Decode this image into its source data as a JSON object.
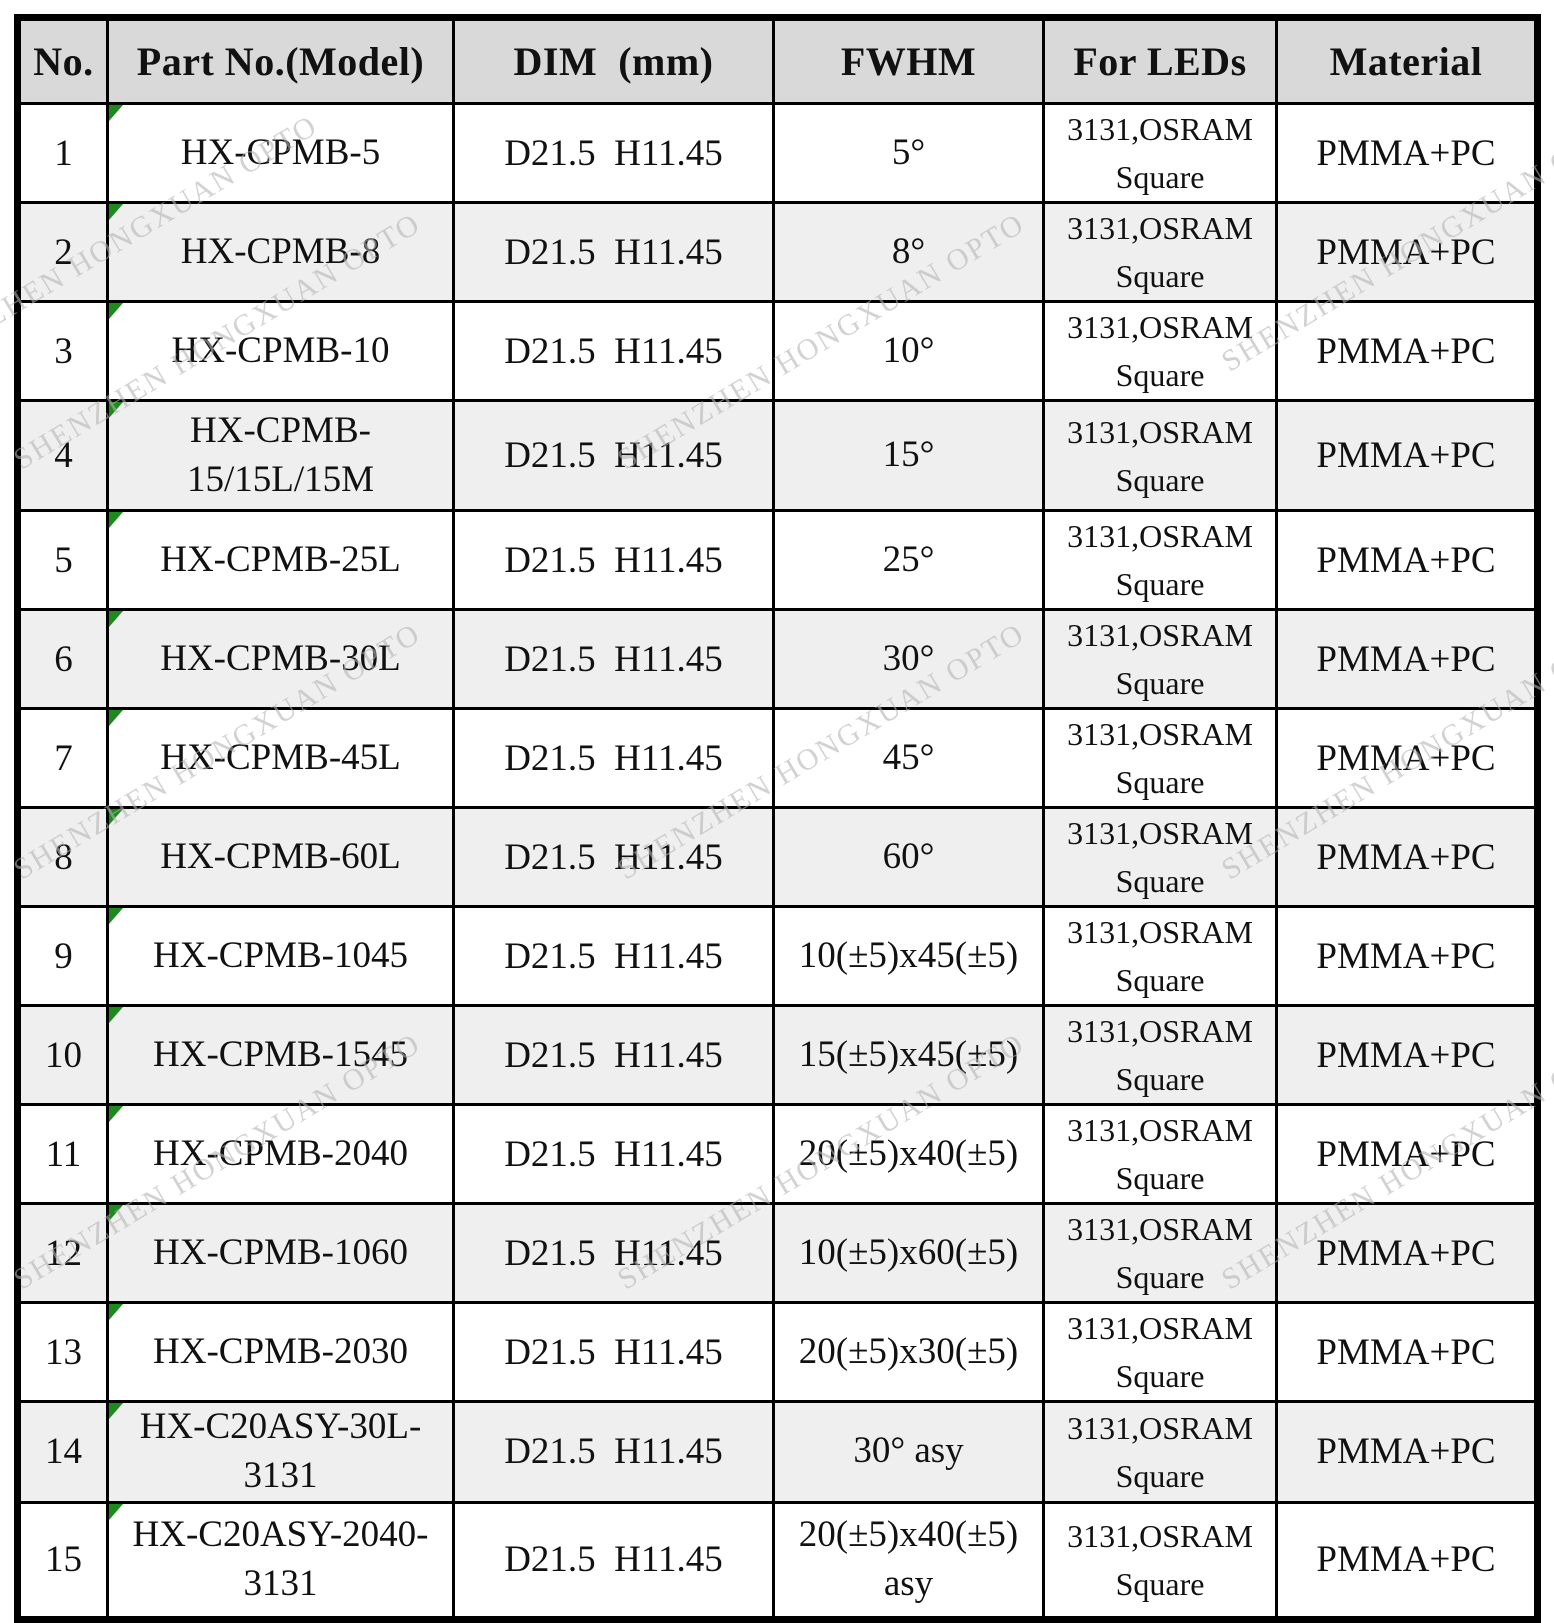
{
  "table": {
    "columns": [
      "No.",
      "Part No.(Model)",
      "DIM  (mm)",
      "FWHM",
      "For LEDs",
      "Material"
    ],
    "rows": [
      {
        "no": "1",
        "part": [
          "HX-CPMB-5"
        ],
        "dim": "D21.5  H11.45",
        "fwhm": [
          "5°"
        ],
        "leds": [
          "3131,OSRAM",
          "Square"
        ],
        "material": "PMMA+PC"
      },
      {
        "no": "2",
        "part": [
          "HX-CPMB-8"
        ],
        "dim": "D21.5  H11.45",
        "fwhm": [
          "8°"
        ],
        "leds": [
          "3131,OSRAM",
          "Square"
        ],
        "material": "PMMA+PC"
      },
      {
        "no": "3",
        "part": [
          "HX-CPMB-10"
        ],
        "dim": "D21.5  H11.45",
        "fwhm": [
          "10°"
        ],
        "leds": [
          "3131,OSRAM",
          "Square"
        ],
        "material": "PMMA+PC"
      },
      {
        "no": "4",
        "part": [
          "HX-CPMB-",
          "15/15L/15M"
        ],
        "dim": "D21.5  H11.45",
        "fwhm": [
          "15°"
        ],
        "leds": [
          "3131,OSRAM",
          "Square"
        ],
        "material": "PMMA+PC"
      },
      {
        "no": "5",
        "part": [
          "HX-CPMB-25L"
        ],
        "dim": "D21.5  H11.45",
        "fwhm": [
          "25°"
        ],
        "leds": [
          "3131,OSRAM",
          "Square"
        ],
        "material": "PMMA+PC"
      },
      {
        "no": "6",
        "part": [
          "HX-CPMB-30L"
        ],
        "dim": "D21.5  H11.45",
        "fwhm": [
          "30°"
        ],
        "leds": [
          "3131,OSRAM",
          "Square"
        ],
        "material": "PMMA+PC"
      },
      {
        "no": "7",
        "part": [
          "HX-CPMB-45L"
        ],
        "dim": "D21.5  H11.45",
        "fwhm": [
          "45°"
        ],
        "leds": [
          "3131,OSRAM",
          "Square"
        ],
        "material": "PMMA+PC"
      },
      {
        "no": "8",
        "part": [
          "HX-CPMB-60L"
        ],
        "dim": "D21.5  H11.45",
        "fwhm": [
          "60°"
        ],
        "leds": [
          "3131,OSRAM",
          "Square"
        ],
        "material": "PMMA+PC"
      },
      {
        "no": "9",
        "part": [
          "HX-CPMB-1045"
        ],
        "dim": "D21.5  H11.45",
        "fwhm": [
          "10(±5)x45(±5)"
        ],
        "leds": [
          "3131,OSRAM",
          "Square"
        ],
        "material": "PMMA+PC"
      },
      {
        "no": "10",
        "part": [
          "HX-CPMB-1545"
        ],
        "dim": "D21.5  H11.45",
        "fwhm": [
          "15(±5)x45(±5)"
        ],
        "leds": [
          "3131,OSRAM",
          "Square"
        ],
        "material": "PMMA+PC"
      },
      {
        "no": "11",
        "part": [
          "HX-CPMB-2040"
        ],
        "dim": "D21.5  H11.45",
        "fwhm": [
          "20(±5)x40(±5)"
        ],
        "leds": [
          "3131,OSRAM",
          "Square"
        ],
        "material": "PMMA+PC"
      },
      {
        "no": "12",
        "part": [
          "HX-CPMB-1060"
        ],
        "dim": "D21.5  H11.45",
        "fwhm": [
          "10(±5)x60(±5)"
        ],
        "leds": [
          "3131,OSRAM",
          "Square"
        ],
        "material": "PMMA+PC"
      },
      {
        "no": "13",
        "part": [
          "HX-CPMB-2030"
        ],
        "dim": "D21.5  H11.45",
        "fwhm": [
          "20(±5)x30(±5)"
        ],
        "leds": [
          "3131,OSRAM",
          "Square"
        ],
        "material": "PMMA+PC"
      },
      {
        "no": "14",
        "part": [
          "HX-C20ASY-30L-",
          "3131"
        ],
        "dim": "D21.5  H11.45",
        "fwhm": [
          "30° asy"
        ],
        "leds": [
          "3131,OSRAM",
          "Square"
        ],
        "material": "PMMA+PC"
      },
      {
        "no": "15",
        "part": [
          "HX-C20ASY-2040-",
          "3131"
        ],
        "dim": "D21.5  H11.45",
        "fwhm": [
          "20(±5)x40(±5)",
          "asy"
        ],
        "leds": [
          "3131,OSRAM",
          "Square"
        ],
        "material": "PMMA+PC"
      }
    ]
  },
  "watermark": {
    "text": "SHENZHEN HONGXUAN OPTO"
  },
  "colors": {
    "header_bg": "#d9d9d9",
    "alt_row_bg": "#efefef",
    "border": "#000000",
    "error_triangle": "#1e8a1e",
    "watermark": "#b3b3b3"
  }
}
